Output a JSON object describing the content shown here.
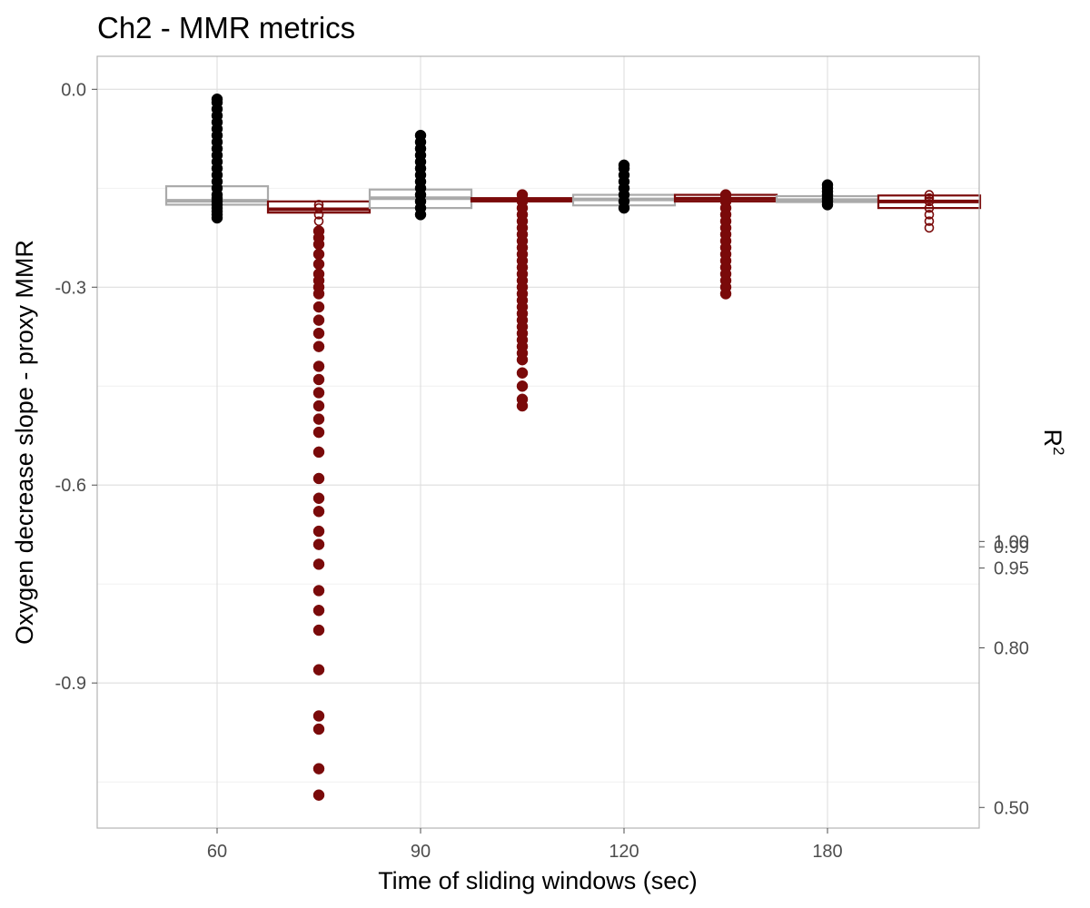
{
  "chart_data": {
    "type": "boxplot",
    "title": "Ch2 - MMR metrics",
    "xlabel": "Time of sliding windows (sec)",
    "ylabel": "Oxygen decrease slope - proxy MMR",
    "y2label_base": "R",
    "y2label_sup": "2",
    "x_tick_labels": [
      "60",
      "90",
      "120",
      "180"
    ],
    "y_ticks": [
      0.0,
      -0.3,
      -0.6,
      -0.9
    ],
    "y_tick_labels": [
      "0.0",
      "-0.3",
      "-0.6",
      "-0.9"
    ],
    "ylim": [
      -1.12,
      0.05
    ],
    "y2_ticks": [
      1.0,
      0.99,
      0.95,
      0.8,
      0.5
    ],
    "y2_tick_labels": [
      "1.00",
      "0.99",
      "0.95",
      "0.80",
      "0.50"
    ],
    "y2_map": {
      "y2_at_0": 1.85,
      "scale": 1.24
    },
    "grid": true,
    "colors": {
      "slope": "#aaaaaa",
      "slope_points": "#000000",
      "r2": "#7a0a0a"
    },
    "series": [
      {
        "name": "slope",
        "group": 1,
        "q1": -0.175,
        "median": -0.169,
        "q3": -0.147,
        "outliers": [
          -0.015,
          -0.02,
          -0.03,
          -0.04,
          -0.05,
          -0.06,
          -0.07,
          -0.08,
          -0.09,
          -0.1,
          -0.11,
          -0.12,
          -0.13,
          -0.14,
          -0.15,
          -0.16,
          -0.165,
          -0.17,
          -0.175,
          -0.18,
          -0.185,
          -0.19,
          -0.195
        ]
      },
      {
        "name": "r2",
        "group": 1.5,
        "q1": -0.187,
        "median": -0.182,
        "q3": -0.17,
        "outliers": [
          -0.175,
          -0.18,
          -0.19,
          -0.2,
          -0.215,
          -0.225,
          -0.235,
          -0.25,
          -0.265,
          -0.28,
          -0.29,
          -0.3,
          -0.31,
          -0.33,
          -0.35,
          -0.37,
          -0.39,
          -0.42,
          -0.44,
          -0.46,
          -0.48,
          -0.5,
          -0.52,
          -0.55,
          -0.59,
          -0.62,
          -0.64,
          -0.67,
          -0.69,
          -0.72,
          -0.76,
          -0.79,
          -0.82,
          -0.88,
          -0.95,
          -0.97,
          -1.03,
          -1.07
        ],
        "hollow": [
          -0.175,
          -0.18,
          -0.19,
          -0.2
        ]
      },
      {
        "name": "slope",
        "group": 2,
        "q1": -0.18,
        "median": -0.165,
        "q3": -0.152,
        "outliers": [
          -0.07,
          -0.08,
          -0.09,
          -0.1,
          -0.11,
          -0.12,
          -0.13,
          -0.14,
          -0.15,
          -0.16,
          -0.17,
          -0.18,
          -0.19
        ]
      },
      {
        "name": "r2",
        "group": 2.5,
        "q1": -0.17,
        "median": -0.168,
        "q3": -0.165,
        "outliers": [
          -0.16,
          -0.17,
          -0.18,
          -0.19,
          -0.2,
          -0.21,
          -0.22,
          -0.23,
          -0.24,
          -0.25,
          -0.26,
          -0.27,
          -0.28,
          -0.29,
          -0.3,
          -0.31,
          -0.32,
          -0.33,
          -0.34,
          -0.35,
          -0.36,
          -0.37,
          -0.38,
          -0.39,
          -0.4,
          -0.41,
          -0.43,
          -0.45,
          -0.47,
          -0.48
        ]
      },
      {
        "name": "slope",
        "group": 3,
        "q1": -0.176,
        "median": -0.167,
        "q3": -0.16,
        "outliers": [
          -0.115,
          -0.12,
          -0.13,
          -0.14,
          -0.15,
          -0.16,
          -0.17,
          -0.18
        ]
      },
      {
        "name": "r2",
        "group": 3.5,
        "q1": -0.17,
        "median": -0.166,
        "q3": -0.16,
        "outliers": [
          -0.16,
          -0.17,
          -0.18,
          -0.19,
          -0.2,
          -0.21,
          -0.22,
          -0.23,
          -0.24,
          -0.25,
          -0.26,
          -0.27,
          -0.28,
          -0.29,
          -0.3,
          -0.31
        ]
      },
      {
        "name": "slope",
        "group": 4,
        "q1": -0.171,
        "median": -0.168,
        "q3": -0.162,
        "outliers": [
          -0.145,
          -0.15,
          -0.155,
          -0.16,
          -0.165,
          -0.17,
          -0.175
        ]
      },
      {
        "name": "r2",
        "group": 4.5,
        "q1": -0.18,
        "median": -0.17,
        "q3": -0.161,
        "outliers": [
          -0.16,
          -0.165,
          -0.17,
          -0.18,
          -0.19,
          -0.2,
          -0.21
        ],
        "hollow": [
          -0.16,
          -0.165,
          -0.17,
          -0.18,
          -0.19,
          -0.2,
          -0.21
        ]
      }
    ]
  }
}
